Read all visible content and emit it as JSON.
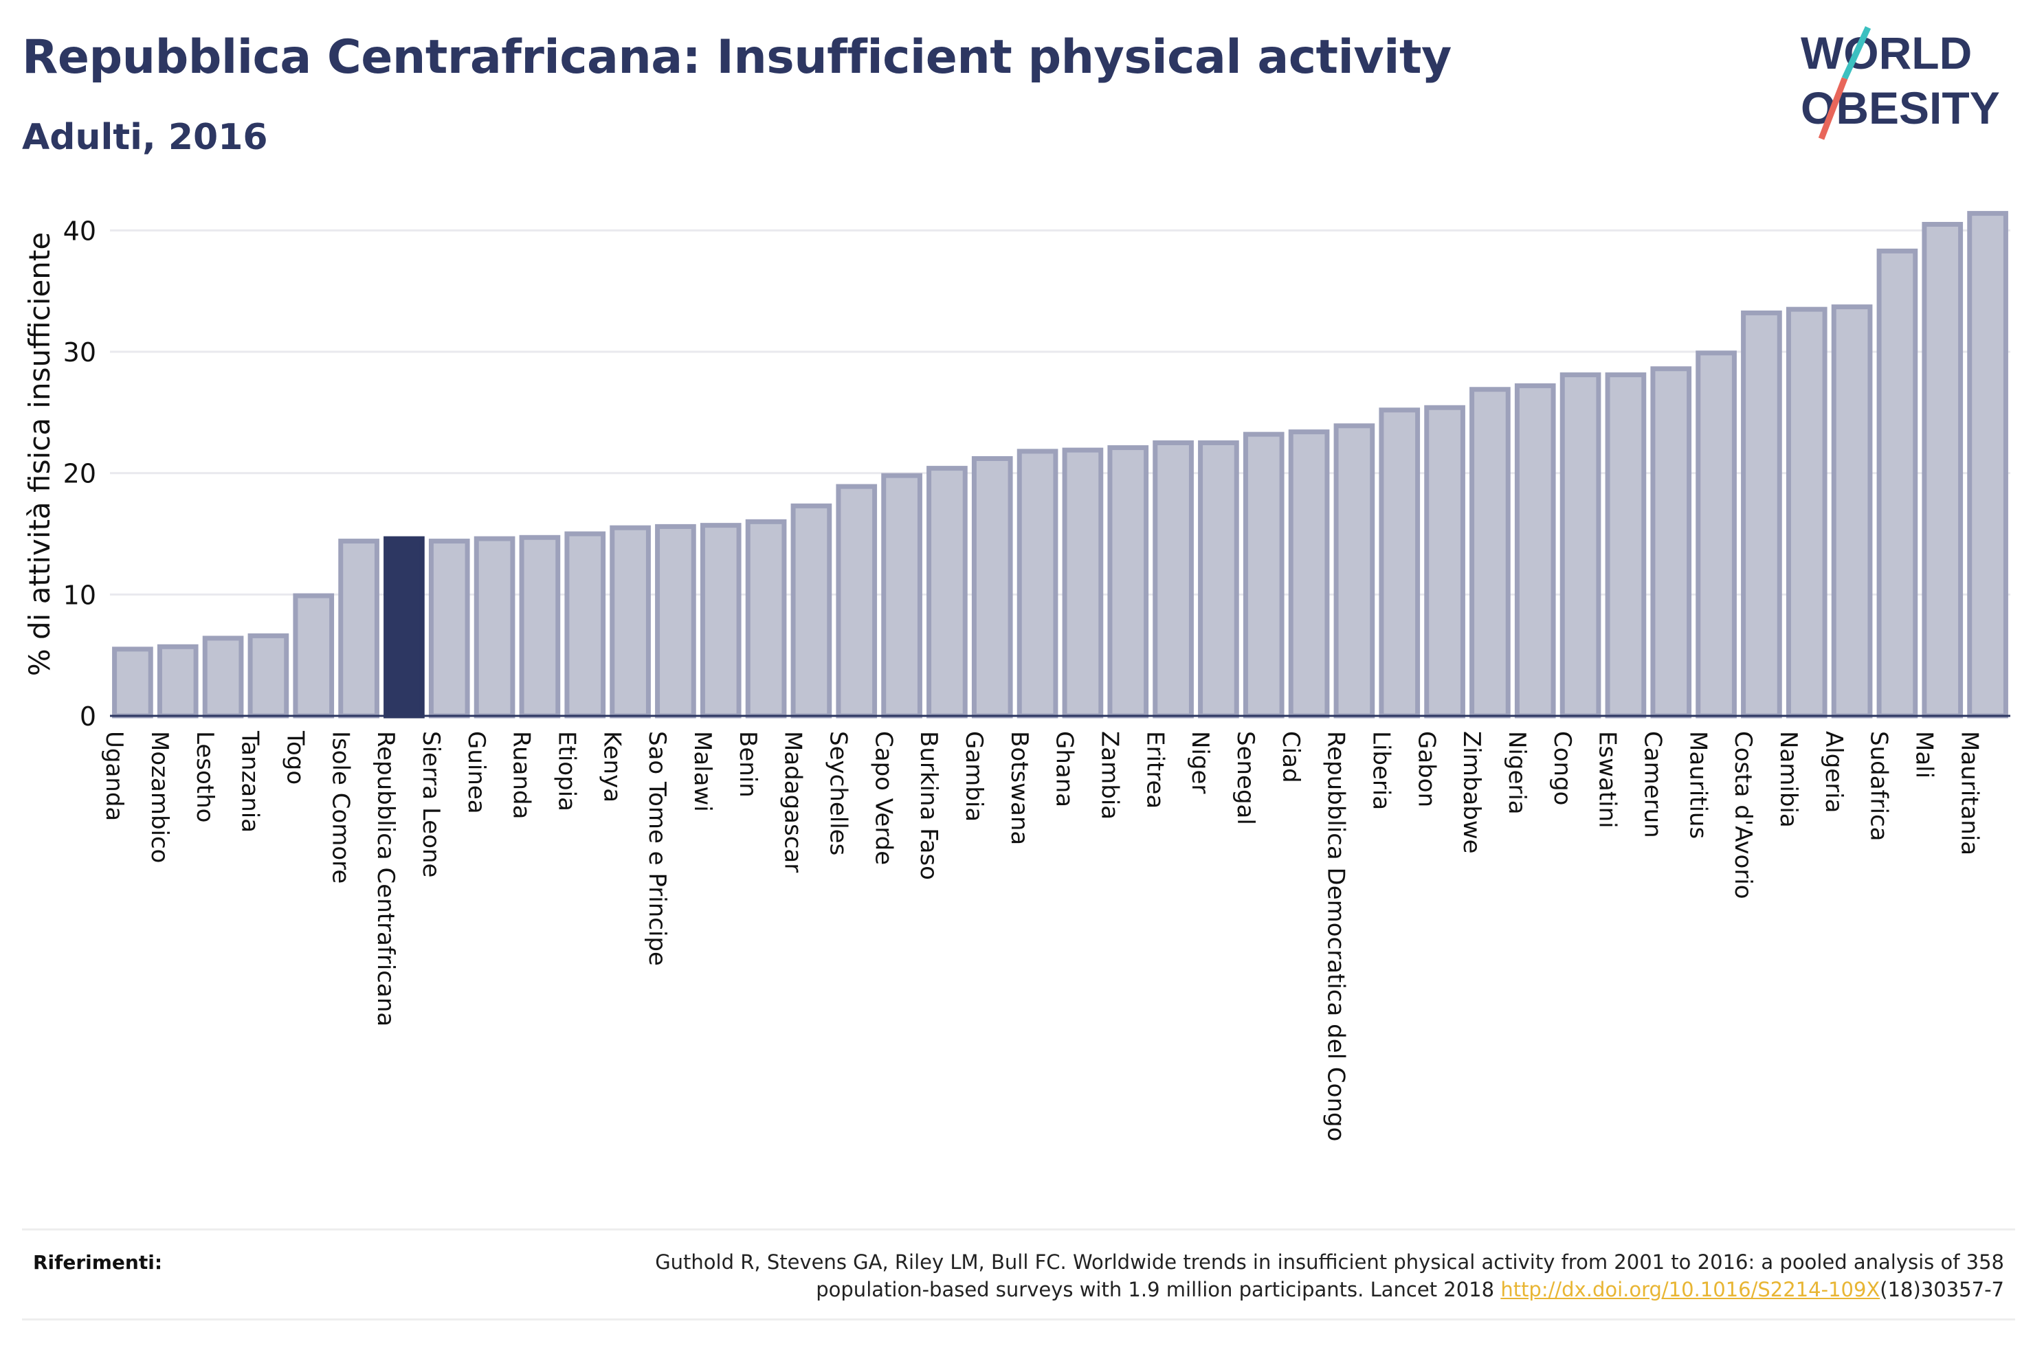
{
  "header": {
    "title": "Repubblica Centrafricana: Insufficient physical activity",
    "subtitle": "Adulti, 2016"
  },
  "logo": {
    "line1": "WORLD",
    "line2": "OBESITY"
  },
  "colors": {
    "title": "#2d3762",
    "bar": "#c0c3d2",
    "bar_border": "#9da1bb",
    "highlight": "#2d3762",
    "link": "#e8b533",
    "logo_slash_teal": "#3cc0c0",
    "logo_slash_red": "#e8665a"
  },
  "chart_data": {
    "type": "bar",
    "title": "Repubblica Centrafricana: Insufficient physical activity",
    "subtitle": "Adulti, 2016",
    "xlabel": "",
    "ylabel": "% di attività fisica insufficiente",
    "ylim": [
      0,
      42
    ],
    "yticks": [
      0,
      10,
      20,
      30,
      40
    ],
    "grid": true,
    "highlight": "Repubblica Centrafricana",
    "categories": [
      "Uganda",
      "Mozambico",
      "Lesotho",
      "Tanzania",
      "Togo",
      "Isole Comore",
      "Repubblica Centrafricana",
      "Sierra Leone",
      "Guinea",
      "Ruanda",
      "Etiopia",
      "Kenya",
      "Sao Tome e Principe",
      "Malawi",
      "Benin",
      "Madagascar",
      "Seychelles",
      "Capo Verde",
      "Burkina Faso",
      "Gambia",
      "Botswana",
      "Ghana",
      "Zambia",
      "Eritrea",
      "Niger",
      "Senegal",
      "Ciad",
      "Repubblica Democratica del Congo",
      "Liberia",
      "Gabon",
      "Zimbabwe",
      "Nigeria",
      "Congo",
      "Eswatini",
      "Camerun",
      "Mauritius",
      "Costa d'Avorio",
      "Namibia",
      "Algeria",
      "Sudafrica",
      "Mali",
      "Mauritania"
    ],
    "values": [
      5.5,
      5.7,
      6.4,
      6.6,
      9.9,
      14.4,
      14.6,
      14.4,
      14.6,
      14.7,
      15.0,
      15.5,
      15.6,
      15.7,
      16.0,
      17.3,
      18.9,
      19.8,
      20.4,
      21.2,
      21.8,
      21.9,
      22.1,
      22.5,
      22.5,
      23.2,
      23.4,
      23.9,
      25.2,
      25.4,
      26.9,
      27.2,
      28.1,
      28.1,
      28.6,
      29.9,
      33.2,
      33.5,
      33.7,
      38.3,
      40.5,
      41.4
    ]
  },
  "references": {
    "label": "Riferimenti:",
    "line1": "Guthold R, Stevens GA, Riley LM, Bull FC. Worldwide trends in insufficient physical activity from 2001 to 2016: a pooled analysis of 358",
    "line2_before": "population-based surveys with 1.9 million participants. Lancet 2018 ",
    "link": "http://dx.doi.org/10.1016/S2214-109X",
    "line2_after": "(18)30357-7"
  }
}
